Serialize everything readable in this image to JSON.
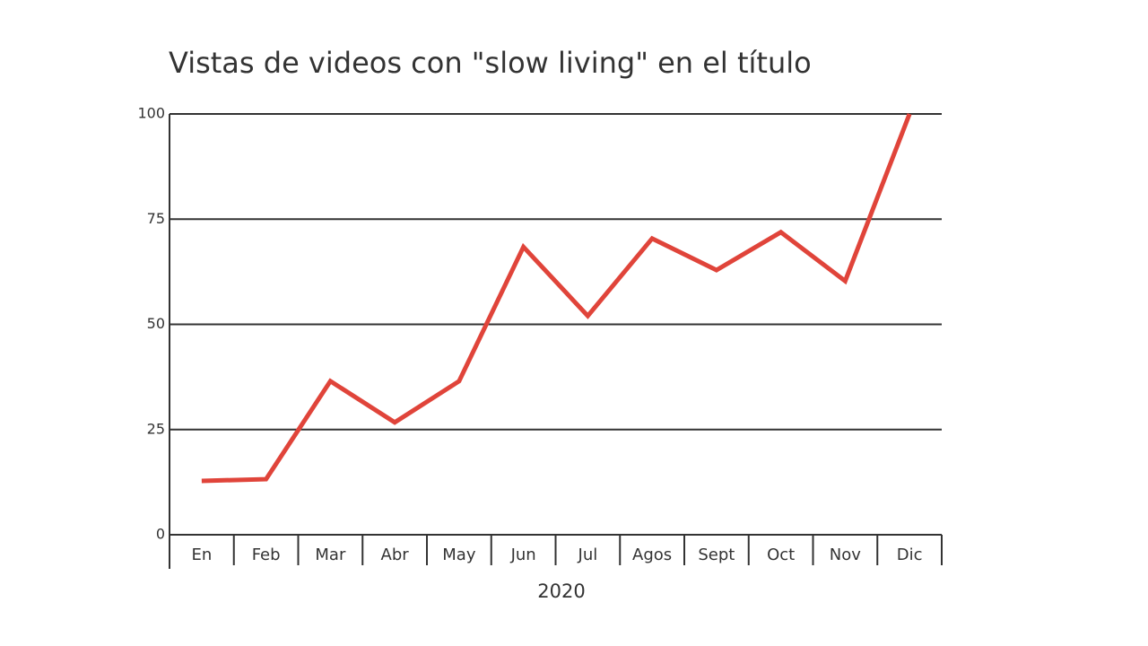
{
  "chart_data": {
    "type": "line",
    "title": "Vistas de videos con \"slow living\" en el título",
    "x_label": "2020",
    "categories": [
      "En",
      "Feb",
      "Mar",
      "Abr",
      "May",
      "Jun",
      "Jul",
      "Agos",
      "Sept",
      "Oct",
      "Nov",
      "Dic"
    ],
    "values": [
      12.8,
      13.2,
      36.5,
      26.7,
      36.5,
      68.4,
      52,
      70.4,
      62.9,
      71.9,
      60.3,
      100
    ],
    "color": "#e0443a",
    "ylim": [
      0,
      100
    ],
    "yticks": [
      0,
      25,
      50,
      75,
      100
    ],
    "grid": true
  }
}
